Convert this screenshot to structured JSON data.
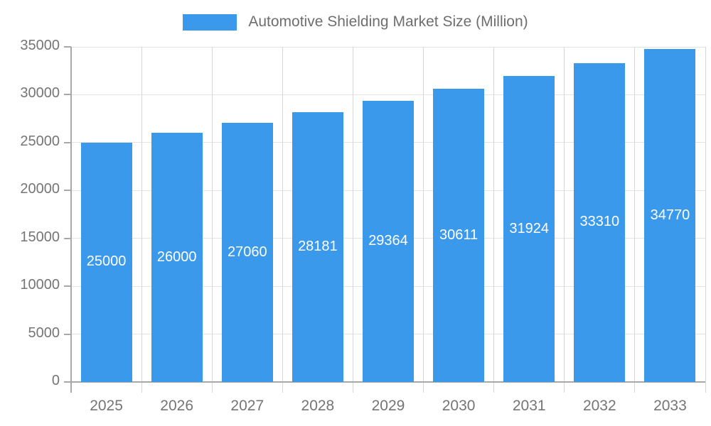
{
  "chart_data": {
    "type": "bar",
    "legend_label": "Automotive Shielding Market Size (Million)",
    "categories": [
      "2025",
      "2026",
      "2027",
      "2028",
      "2029",
      "2030",
      "2031",
      "2032",
      "2033"
    ],
    "values": [
      25000,
      26000,
      27060,
      28181,
      29364,
      30611,
      31924,
      33310,
      34770
    ],
    "bar_labels": [
      "25000",
      "26000",
      "27060",
      "28181",
      "29364",
      "30611",
      "31924",
      "33310",
      "34770"
    ],
    "ylim": [
      0,
      35000
    ],
    "ytick_step": 5000,
    "ytick_labels": [
      "0",
      "5000",
      "10000",
      "15000",
      "20000",
      "25000",
      "30000",
      "35000"
    ],
    "grid": "on",
    "legend_position": "top-center",
    "xlabel": "",
    "ylabel": "",
    "value_label_position": "center-inside-bar"
  },
  "colors": {
    "bar_fill": "#3B99EC",
    "bar_value_text": "#FFFFFF",
    "legend_text": "#6E6E6E",
    "tick_text": "#757575",
    "gridline": "#E3E3E3",
    "category_line": "#D6D6D6",
    "axis_line": "#A8A8A8",
    "background": "#FFFFFF"
  }
}
